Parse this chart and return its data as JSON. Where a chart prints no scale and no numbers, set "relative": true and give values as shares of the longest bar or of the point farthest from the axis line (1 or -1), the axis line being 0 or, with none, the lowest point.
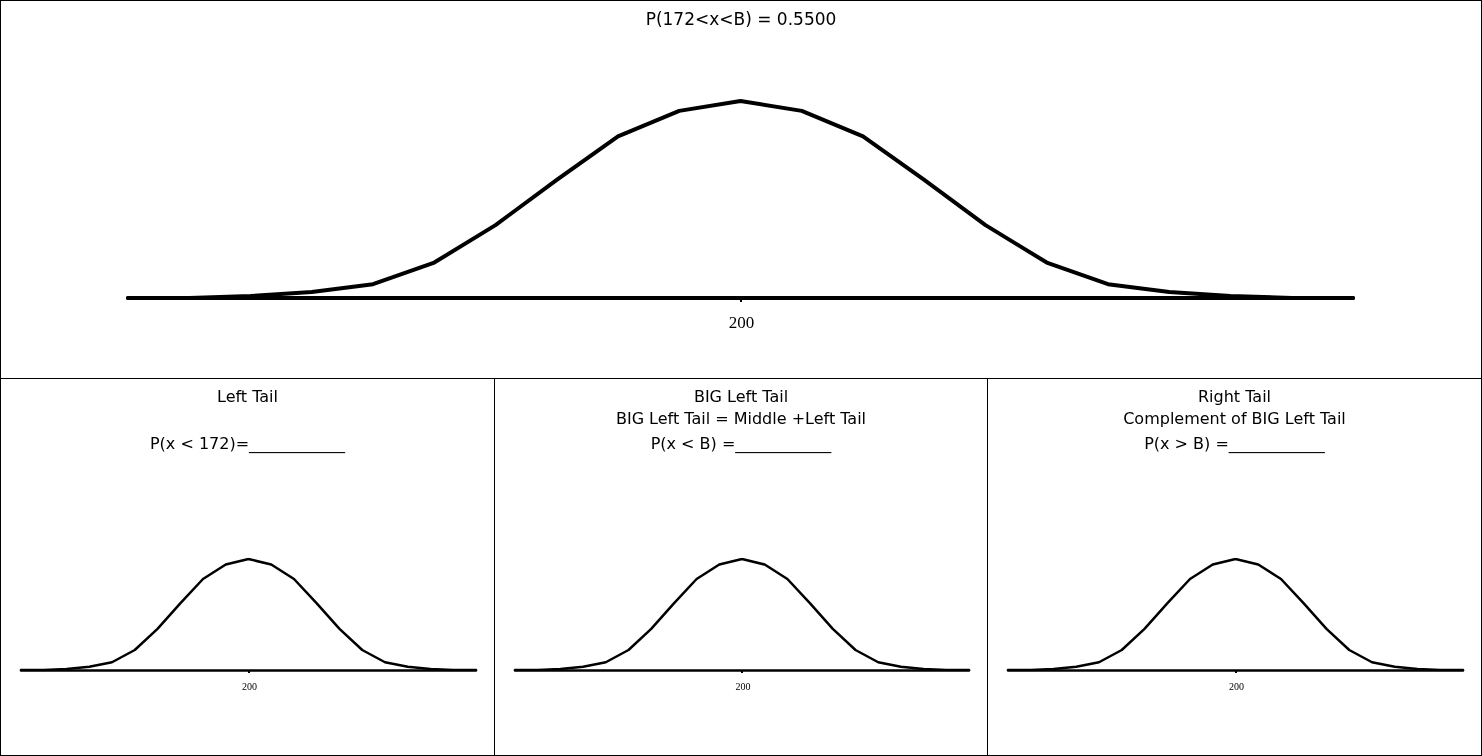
{
  "chart_data": [
    {
      "type": "line",
      "title": "P(172<x<B) = 0.5500",
      "annotations": [
        {
          "text": "200"
        }
      ],
      "categories": [
        null,
        null,
        null,
        null,
        null,
        null,
        null,
        null,
        null,
        null,
        null,
        null,
        null,
        null,
        null,
        null,
        null,
        null,
        null,
        null,
        null
      ],
      "values": [
        0,
        0,
        0.01,
        0.03,
        0.07,
        0.18,
        0.37,
        0.6,
        0.82,
        0.95,
        1,
        0.95,
        0.82,
        0.6,
        0.37,
        0.18,
        0.07,
        0.03,
        0.01,
        0,
        0
      ],
      "relative": true,
      "color": "#000000"
    },
    {
      "type": "line",
      "title": "Left Tail",
      "annotations": [
        "P(x < 172)=____________",
        {
          "text": "200"
        }
      ],
      "categories": [
        null,
        null,
        null,
        null,
        null,
        null,
        null,
        null,
        null,
        null,
        null,
        null,
        null,
        null,
        null,
        null,
        null,
        null,
        null,
        null,
        null
      ],
      "values": [
        0,
        0,
        0.01,
        0.03,
        0.07,
        0.18,
        0.37,
        0.6,
        0.82,
        0.95,
        1,
        0.95,
        0.82,
        0.6,
        0.37,
        0.18,
        0.07,
        0.03,
        0.01,
        0,
        0
      ],
      "relative": true,
      "color": "#000000"
    },
    {
      "type": "line",
      "title": "BIG Left Tail",
      "subtitle": "BIG Left Tail = Middle +Left Tail",
      "annotations": [
        "P(x < B) =____________",
        {
          "text": "200"
        }
      ],
      "categories": [
        null,
        null,
        null,
        null,
        null,
        null,
        null,
        null,
        null,
        null,
        null,
        null,
        null,
        null,
        null,
        null,
        null,
        null,
        null,
        null,
        null
      ],
      "values": [
        0,
        0,
        0.01,
        0.03,
        0.07,
        0.18,
        0.37,
        0.6,
        0.82,
        0.95,
        1,
        0.95,
        0.82,
        0.6,
        0.37,
        0.18,
        0.07,
        0.03,
        0.01,
        0,
        0
      ],
      "relative": true,
      "color": "#000000"
    },
    {
      "type": "line",
      "title": "Right Tail",
      "subtitle": "Complement of BIG Left Tail",
      "annotations": [
        "P(x > B) =____________",
        {
          "text": "200"
        }
      ],
      "categories": [
        null,
        null,
        null,
        null,
        null,
        null,
        null,
        null,
        null,
        null,
        null,
        null,
        null,
        null,
        null,
        null,
        null,
        null,
        null,
        null,
        null
      ],
      "values": [
        0,
        0,
        0.01,
        0.03,
        0.07,
        0.18,
        0.37,
        0.6,
        0.82,
        0.95,
        1,
        0.95,
        0.82,
        0.6,
        0.37,
        0.18,
        0.07,
        0.03,
        0.01,
        0,
        0
      ],
      "relative": true,
      "color": "#000000"
    }
  ]
}
